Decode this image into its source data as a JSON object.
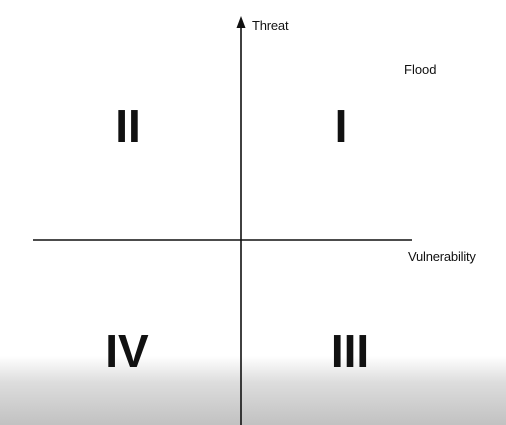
{
  "diagram": {
    "y_axis_label": "Threat",
    "x_axis_label": "Vulnerability",
    "quadrants": {
      "top_right": "I",
      "top_left": "II",
      "bottom_right": "III",
      "bottom_left": "IV"
    },
    "plotted_item": "Flood",
    "colors": {
      "ink": "#111111",
      "background": "#ffffff",
      "bottom_shading": "#c0c0c0"
    }
  }
}
